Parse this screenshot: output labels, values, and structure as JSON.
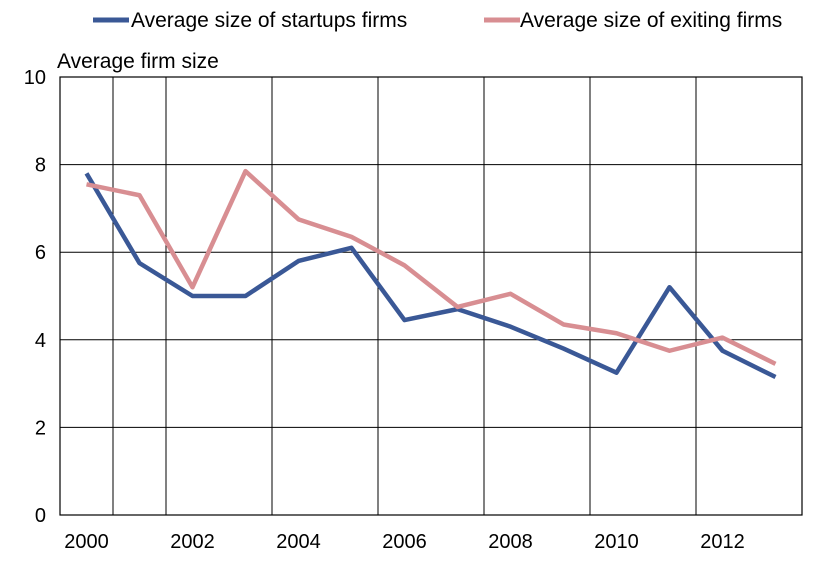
{
  "chart_data": {
    "type": "line",
    "title": "",
    "xlabel": "",
    "ylabel": "Average firm size",
    "x": [
      2000,
      2001,
      2002,
      2003,
      2004,
      2005,
      2006,
      2007,
      2008,
      2009,
      2010,
      2011,
      2012,
      2013
    ],
    "xticks": [
      "2000",
      "2002",
      "2004",
      "2006",
      "2008",
      "2010",
      "2012"
    ],
    "yticks": [
      "0",
      "2",
      "4",
      "6",
      "8",
      "10"
    ],
    "ylim": [
      0,
      10
    ],
    "grid": true,
    "legend_position": "top",
    "series": [
      {
        "name": "Average size of startups firms",
        "color": "#3a5896",
        "values": [
          7.8,
          5.75,
          5.0,
          5.0,
          5.8,
          6.1,
          4.45,
          4.7,
          4.3,
          3.8,
          3.25,
          5.2,
          3.75,
          3.15
        ]
      },
      {
        "name": "Average size of exiting firms",
        "color": "#d88e92",
        "values": [
          7.55,
          7.3,
          5.2,
          7.85,
          6.75,
          6.35,
          5.7,
          4.75,
          5.05,
          4.35,
          4.15,
          3.75,
          4.05,
          3.45
        ]
      }
    ]
  }
}
